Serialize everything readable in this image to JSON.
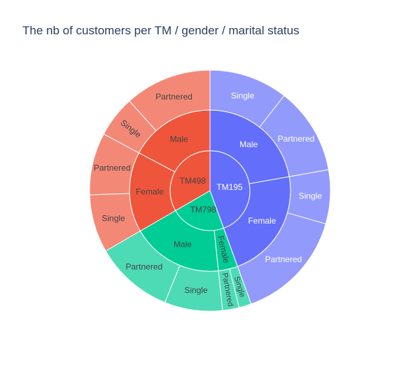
{
  "chart_data": {
    "type": "sunburst",
    "title": "The nb of customers per TM / gender / marital status",
    "root_label": "",
    "levels": [
      "TM",
      "gender",
      "marital status"
    ],
    "colors": {
      "TM195": "#636efa",
      "TM498": "#ef553b",
      "TM798": "#00cc96"
    },
    "segments": [
      {
        "label": "TM195",
        "value": 80,
        "children": [
          {
            "label": "Male",
            "value": 40,
            "children": [
              {
                "label": "Single",
                "value": 19
              },
              {
                "label": "Partnered",
                "value": 21
              }
            ]
          },
          {
            "label": "Female",
            "value": 40,
            "children": [
              {
                "label": "Single",
                "value": 13
              },
              {
                "label": "Partnered",
                "value": 27
              }
            ]
          }
        ]
      },
      {
        "label": "TM798",
        "value": 40,
        "children": [
          {
            "label": "Female",
            "value": 7,
            "children": [
              {
                "label": "Single",
                "value": 3
              },
              {
                "label": "Partnered",
                "value": 4
              }
            ]
          },
          {
            "label": "Male",
            "value": 33,
            "children": [
              {
                "label": "Single",
                "value": 14
              },
              {
                "label": "Partnered",
                "value": 19
              }
            ]
          }
        ]
      },
      {
        "label": "TM498",
        "value": 60,
        "children": [
          {
            "label": "Female",
            "value": 29,
            "children": [
              {
                "label": "Single",
                "value": 14
              },
              {
                "label": "Partnered",
                "value": 15
              }
            ]
          },
          {
            "label": "Male",
            "value": 31,
            "children": [
              {
                "label": "Single",
                "value": 10
              },
              {
                "label": "Partnered",
                "value": 21
              }
            ]
          }
        ]
      }
    ]
  }
}
